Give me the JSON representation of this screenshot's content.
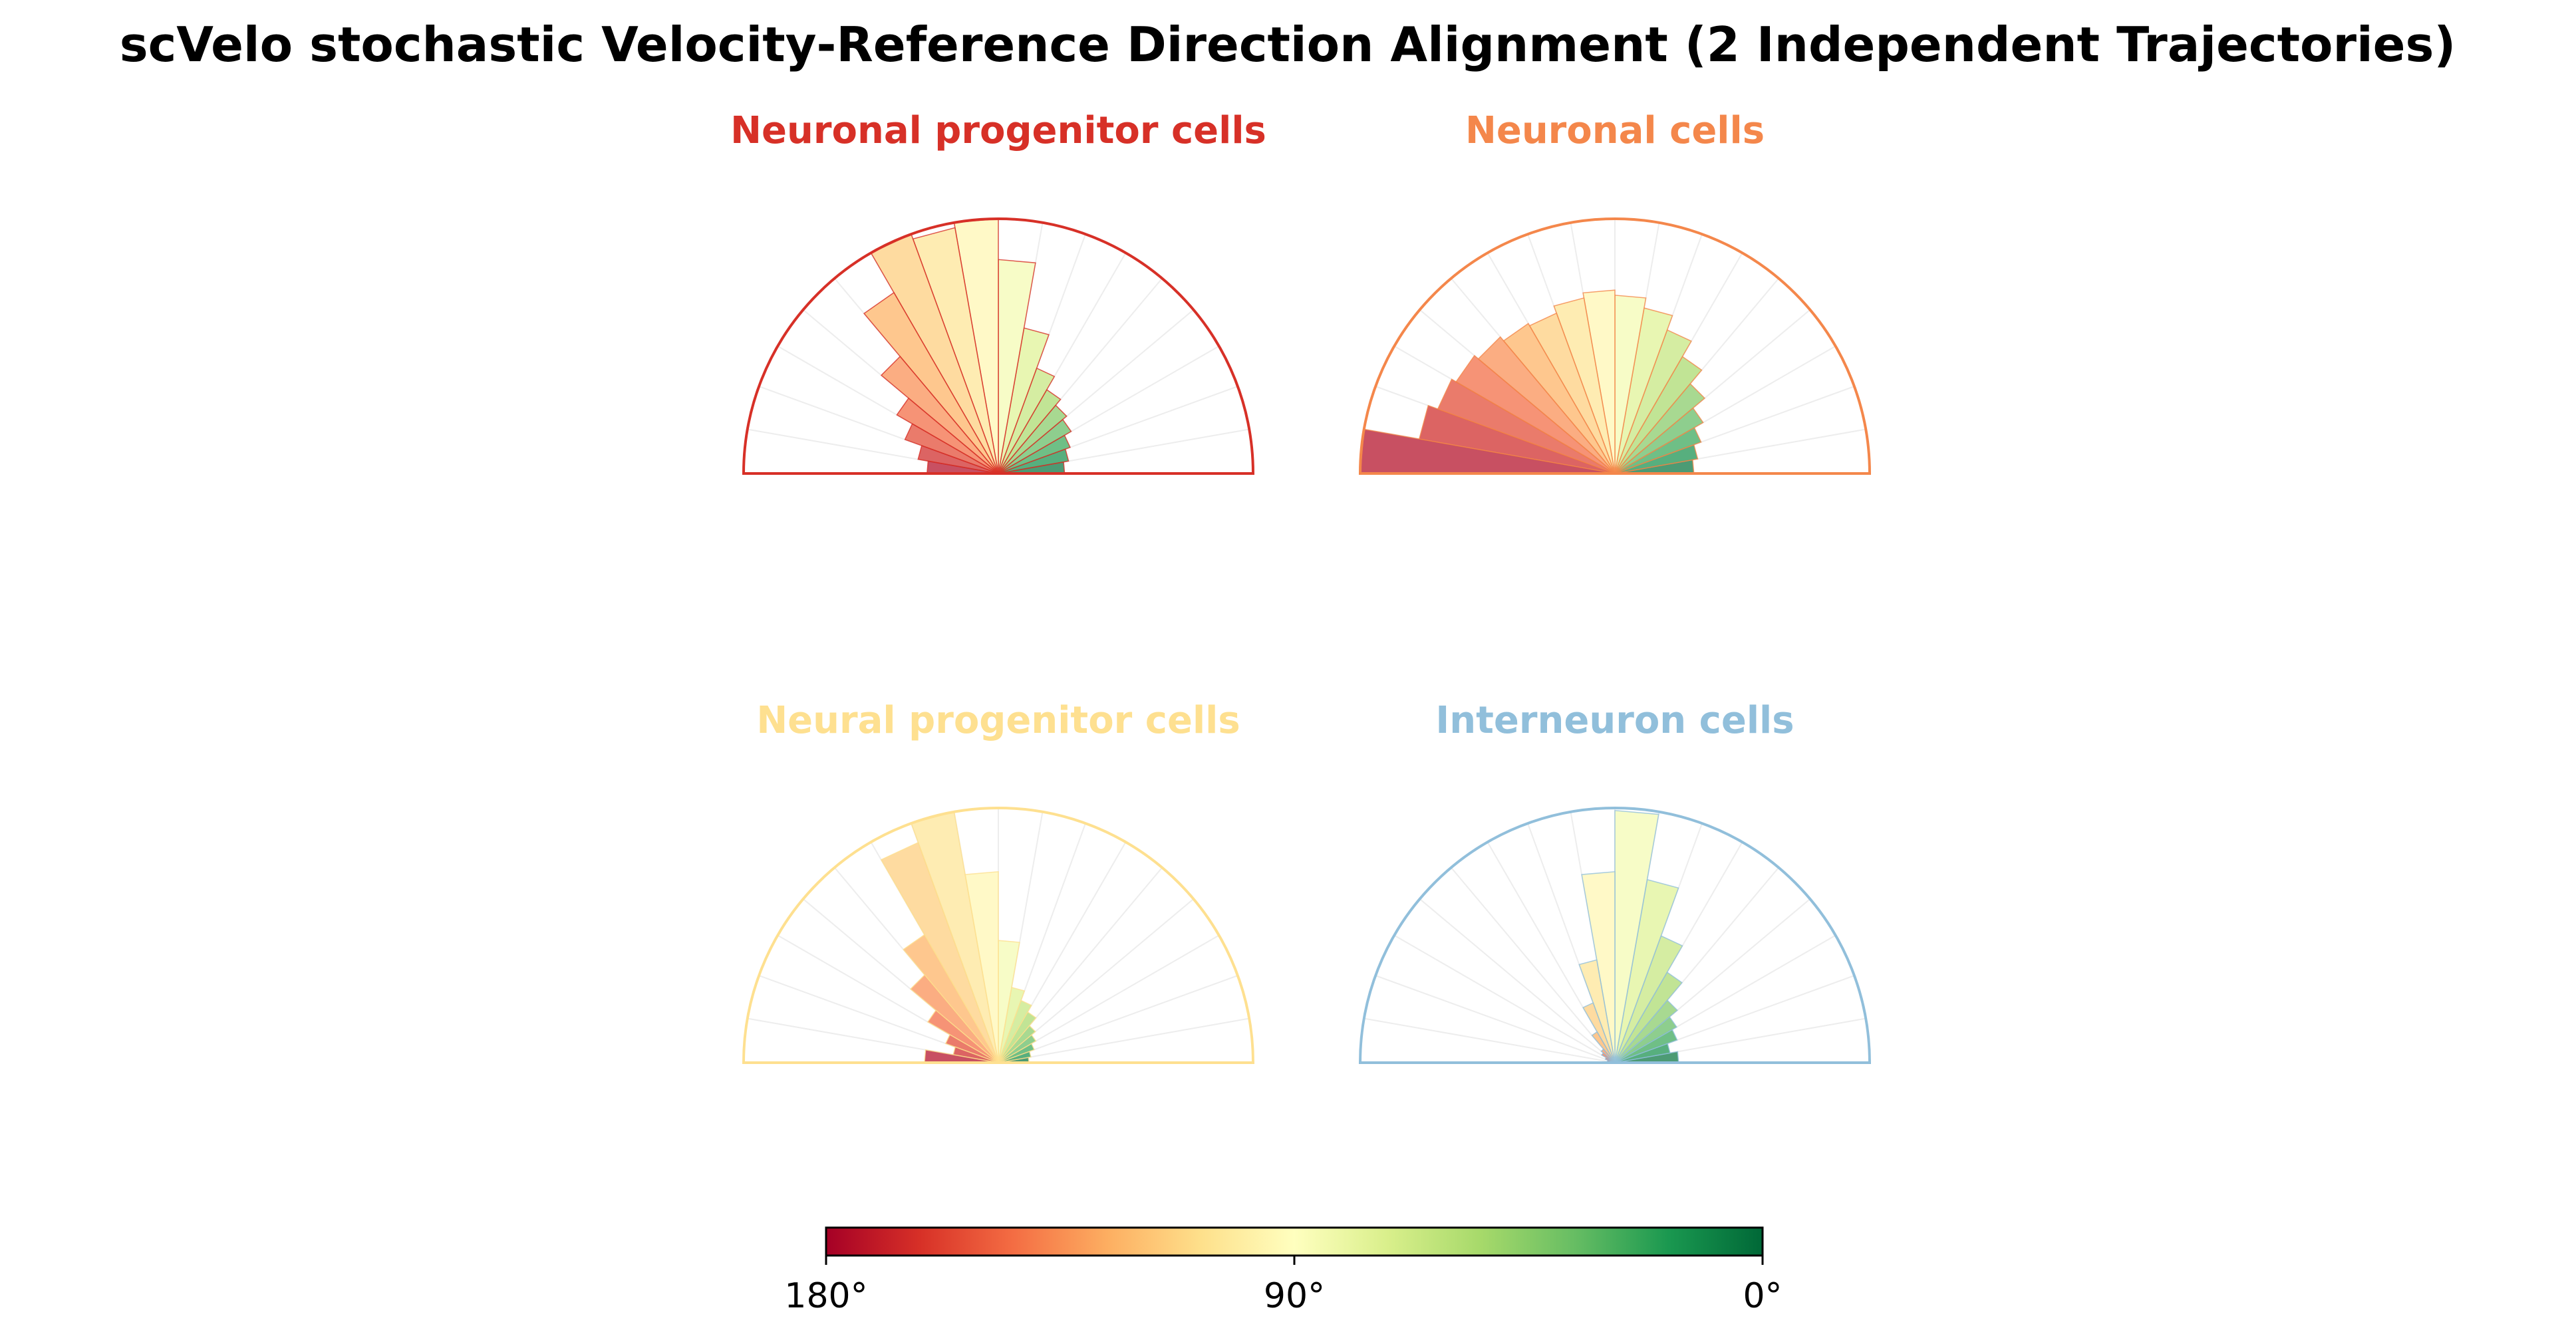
{
  "figure": {
    "title": "scVelo stochastic Velocity-Reference Direction Alignment (2 Independent Trajectories)"
  },
  "chart_data": [
    {
      "type": "polar-bar",
      "title": "Neuronal progenitor cells",
      "title_color": "#d73027",
      "bin_width_deg": 10,
      "angle_range_deg": [
        0,
        180
      ],
      "bin_centers_deg": [
        5,
        15,
        25,
        35,
        45,
        55,
        65,
        75,
        85,
        95,
        105,
        115,
        125,
        135,
        145,
        155,
        165,
        175
      ],
      "values": [
        0.26,
        0.28,
        0.3,
        0.33,
        0.35,
        0.38,
        0.44,
        0.58,
        0.84,
        1.0,
        0.98,
        1.0,
        0.82,
        0.6,
        0.46,
        0.39,
        0.32,
        0.28
      ]
    },
    {
      "type": "polar-bar",
      "title": "Neuronal cells",
      "title_color": "#f4874b",
      "bin_width_deg": 10,
      "angle_range_deg": [
        0,
        180
      ],
      "bin_centers_deg": [
        5,
        15,
        25,
        35,
        45,
        55,
        65,
        75,
        85,
        95,
        105,
        115,
        125,
        135,
        145,
        155,
        165,
        175
      ],
      "values": [
        0.31,
        0.33,
        0.36,
        0.4,
        0.46,
        0.53,
        0.6,
        0.66,
        0.7,
        0.72,
        0.7,
        0.67,
        0.68,
        0.7,
        0.72,
        0.74,
        0.78,
        1.0
      ]
    },
    {
      "type": "polar-bar",
      "title": "Neural progenitor cells",
      "title_color": "#fee090",
      "bin_width_deg": 10,
      "angle_range_deg": [
        0,
        180
      ],
      "bin_centers_deg": [
        5,
        15,
        25,
        35,
        45,
        55,
        65,
        75,
        85,
        95,
        105,
        115,
        125,
        135,
        145,
        155,
        165,
        175
      ],
      "values": [
        0.12,
        0.13,
        0.15,
        0.17,
        0.19,
        0.23,
        0.26,
        0.3,
        0.48,
        0.75,
        1.0,
        0.92,
        0.58,
        0.45,
        0.32,
        0.22,
        0.18,
        0.29
      ]
    },
    {
      "type": "polar-bar",
      "title": "Interneuron cells",
      "title_color": "#91bfdb",
      "bin_width_deg": 10,
      "angle_range_deg": [
        0,
        180
      ],
      "bin_centers_deg": [
        5,
        15,
        25,
        35,
        45,
        55,
        65,
        75,
        85,
        95,
        105,
        115,
        125,
        135,
        145,
        155,
        165,
        175
      ],
      "values": [
        0.25,
        0.22,
        0.26,
        0.28,
        0.32,
        0.41,
        0.53,
        0.73,
        0.99,
        0.75,
        0.41,
        0.25,
        0.14,
        0.07,
        0.06,
        0.04,
        0.03,
        0.02
      ]
    }
  ],
  "colorbar": {
    "colormap": "RdYlGn",
    "range_deg": [
      180,
      0
    ],
    "tick_labels": [
      "180°",
      "90°",
      "0°"
    ],
    "tick_values_deg": [
      180,
      90,
      0
    ]
  }
}
